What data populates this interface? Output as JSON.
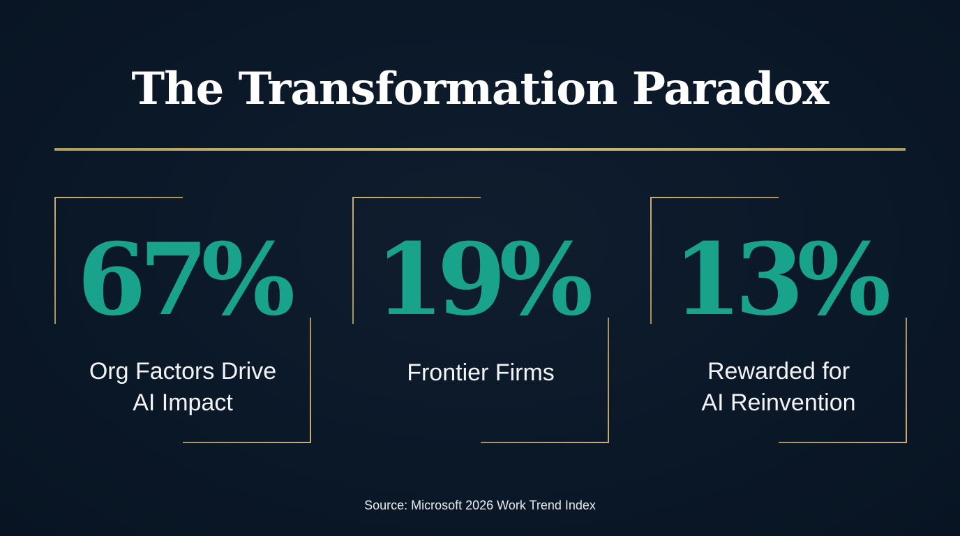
{
  "title": "The Transformation Paradox",
  "colors": {
    "background": "#0b1828",
    "accent_gold": "#c9ad70",
    "stat_teal": "#1aa38c",
    "text_white": "#ffffff"
  },
  "stats": [
    {
      "value": "67%",
      "label_line1": "Org Factors Drive",
      "label_line2": "AI Impact"
    },
    {
      "value": "19%",
      "label_line1": "Frontier Firms",
      "label_line2": ""
    },
    {
      "value": "13%",
      "label_line1": "Rewarded for",
      "label_line2": "AI Reinvention"
    }
  ],
  "source": "Source: Microsoft 2026 Work Trend Index"
}
